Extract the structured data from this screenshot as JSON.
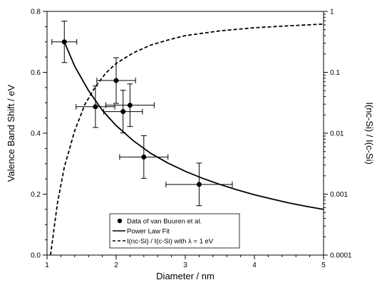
{
  "chart_data": {
    "type": "scatter",
    "title": "",
    "xlabel": "Diameter / nm",
    "ylabel": "Valence Band Shift / eV",
    "y2label": "I(nc-Si) / I(c-Si)",
    "xlim": [
      1,
      5
    ],
    "ylim": [
      0,
      0.8
    ],
    "y2lim": [
      0.0001,
      1
    ],
    "y2scale": "log",
    "x_ticks": [
      "1",
      "2",
      "3",
      "4",
      "5"
    ],
    "y_ticks": [
      "0.0",
      "0.2",
      "0.4",
      "0.6",
      "0.8"
    ],
    "y2_ticks": [
      "0.0001",
      "0.001",
      "0.01",
      "0.1",
      "1"
    ],
    "grid": false,
    "legend_position": "bottom-center",
    "series": [
      {
        "name": "Data of van Buuren et al.",
        "kind": "points_with_error_bars",
        "marker": "filled-circle",
        "axis": "left",
        "points": [
          {
            "x": 1.25,
            "y": 0.7,
            "xerr": 0.18,
            "yerr": 0.068
          },
          {
            "x": 1.7,
            "y": 0.487,
            "xerr": 0.28,
            "yerr": 0.068
          },
          {
            "x": 2.0,
            "y": 0.573,
            "xerr": 0.28,
            "yerr": 0.075
          },
          {
            "x": 2.1,
            "y": 0.471,
            "xerr": 0.28,
            "yerr": 0.07
          },
          {
            "x": 2.2,
            "y": 0.492,
            "xerr": 0.35,
            "yerr": 0.07
          },
          {
            "x": 2.4,
            "y": 0.322,
            "xerr": 0.35,
            "yerr": 0.07
          },
          {
            "x": 3.2,
            "y": 0.232,
            "xerr": 0.48,
            "yerr": 0.07
          }
        ]
      },
      {
        "name": "Power Law Fit",
        "kind": "line",
        "style": "solid",
        "axis": "left",
        "x": [
          1.25,
          1.4,
          1.6,
          1.8,
          2.0,
          2.25,
          2.5,
          2.75,
          3.0,
          3.25,
          3.5,
          3.75,
          4.0,
          4.25,
          4.5,
          4.75,
          5.0
        ],
        "y": [
          0.7,
          0.62,
          0.54,
          0.475,
          0.425,
          0.375,
          0.334,
          0.302,
          0.275,
          0.252,
          0.232,
          0.214,
          0.198,
          0.184,
          0.171,
          0.16,
          0.15
        ]
      },
      {
        "name": "I(nc-Si) / I(c-Si) with λ = 1 eV",
        "kind": "line",
        "style": "dashed",
        "axis": "right",
        "x": [
          1.05,
          1.15,
          1.25,
          1.4,
          1.55,
          1.7,
          1.85,
          2.0,
          2.25,
          2.5,
          2.75,
          3.0,
          3.5,
          4.0,
          4.5,
          5.0
        ],
        "y": [
          0.0001,
          0.0007,
          0.0028,
          0.011,
          0.03,
          0.058,
          0.097,
          0.14,
          0.21,
          0.28,
          0.34,
          0.4,
          0.48,
          0.54,
          0.58,
          0.62
        ]
      }
    ]
  }
}
